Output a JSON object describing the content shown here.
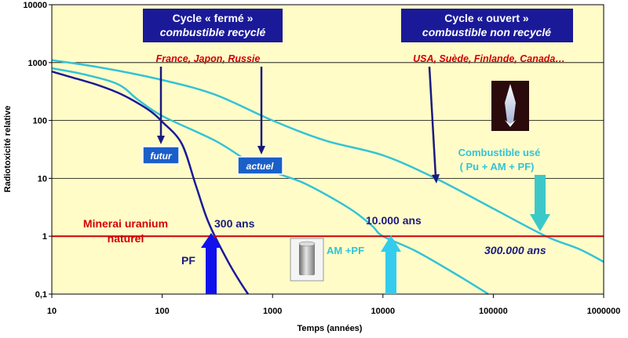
{
  "chart_data": {
    "type": "line",
    "title": "",
    "xlabel": "Temps (années)",
    "ylabel": "Radiotoxicité relative",
    "xscale": "log",
    "yscale": "log",
    "xlim": [
      10,
      1000000
    ],
    "ylim": [
      0.1,
      10000
    ],
    "x_ticks": [
      "10",
      "100",
      "1000",
      "10000",
      "100000",
      "1000000"
    ],
    "y_ticks": [
      "0,1",
      "1",
      "10",
      "100",
      "1000",
      "10000"
    ],
    "grid": "horizontal",
    "background": "#fffcc8",
    "series": [
      {
        "name": "",
        "color": "#1a1a99",
        "points": [
          [
            10,
            700
          ],
          [
            15,
            560
          ],
          [
            25,
            420
          ],
          [
            40,
            300
          ],
          [
            60,
            200
          ],
          [
            80,
            140
          ],
          [
            100,
            95
          ],
          [
            150,
            40
          ],
          [
            200,
            8
          ],
          [
            250,
            2.2
          ],
          [
            300,
            1
          ],
          [
            400,
            0.35
          ],
          [
            500,
            0.17
          ],
          [
            600,
            0.1
          ]
        ]
      },
      {
        "name": "",
        "color": "#33c3d6",
        "points": [
          [
            10,
            800
          ],
          [
            20,
            620
          ],
          [
            40,
            420
          ],
          [
            60,
            230
          ],
          [
            100,
            120
          ],
          [
            300,
            45
          ],
          [
            600,
            20
          ],
          [
            1000,
            13
          ],
          [
            2000,
            8
          ],
          [
            5000,
            3
          ],
          [
            8000,
            1.5
          ],
          [
            10000,
            1
          ],
          [
            20000,
            0.55
          ],
          [
            50000,
            0.2
          ],
          [
            90000,
            0.1
          ]
        ]
      },
      {
        "name": "",
        "color": "#33c3d6",
        "points": [
          [
            10,
            1100
          ],
          [
            30,
            800
          ],
          [
            100,
            500
          ],
          [
            300,
            280
          ],
          [
            1000,
            100
          ],
          [
            3000,
            45
          ],
          [
            10000,
            25
          ],
          [
            30000,
            10
          ],
          [
            100000,
            3
          ],
          [
            300000,
            1
          ],
          [
            600000,
            0.6
          ],
          [
            1000000,
            0.36
          ]
        ]
      },
      {
        "name": "",
        "color": "#cc0000",
        "points": [
          [
            10,
            1
          ],
          [
            1000000,
            1
          ]
        ]
      }
    ],
    "annotations": {
      "box_closed": [
        "Cycle « fermé »",
        "combustible recyclé"
      ],
      "box_open": [
        "Cycle « ouvert »",
        "combustible non recyclé"
      ],
      "countries_closed": "France, Japon, Russie",
      "countries_open": "USA, Suède, Finlande, Canada…",
      "label_futur": "futur",
      "label_actuel": "actuel",
      "spent_fuel": [
        "Combustible usé",
        "( Pu + AM + PF)"
      ],
      "ore": [
        "Minerai uranium",
        "naturel"
      ],
      "t300": "300 ans",
      "t10000": "10.000 ans",
      "t300000": "300.000 ans",
      "pf": "PF",
      "am_pf": "AM +PF"
    },
    "colors": {
      "navy_box": "#1a1a99",
      "label_box": "#1a5fc8",
      "cyan": "#33c3d6",
      "light_cyan": "#33ccee",
      "blue_arrow": "#1111ee",
      "red": "#cc0000"
    }
  }
}
